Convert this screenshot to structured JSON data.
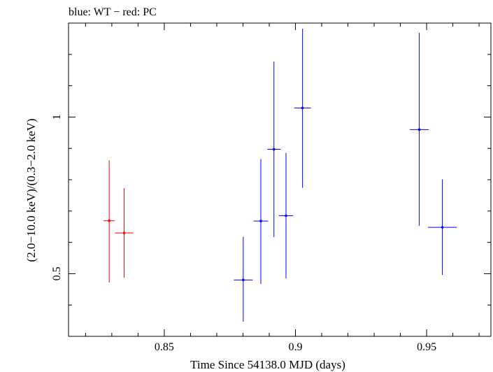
{
  "chart_data": {
    "type": "scatter",
    "title": "blue: WT − red: PC",
    "xlabel": "Time Since 54138.0 MJD (days)",
    "ylabel": "(2.0−10.0 keV)/(0.3−2.0 keV)",
    "xlim": [
      0.8135,
      0.9745
    ],
    "ylim": [
      0.3,
      1.3
    ],
    "x_ticks": [
      {
        "value": 0.85,
        "label": "0.85"
      },
      {
        "value": 0.9,
        "label": "0.9"
      },
      {
        "value": 0.95,
        "label": "0.95"
      }
    ],
    "y_ticks": [
      {
        "value": 0.5,
        "label": "0.5"
      },
      {
        "value": 1.0,
        "label": "1"
      }
    ],
    "series": [
      {
        "mode": "WT",
        "color": "#0000ff",
        "points": [
          {
            "x": 0.8801,
            "y": 0.48,
            "xerr": 0.0036,
            "ylo": 0.347,
            "yhi": 0.618
          },
          {
            "x": 0.8868,
            "y": 0.668,
            "xerr": 0.0028,
            "ylo": 0.467,
            "yhi": 0.866
          },
          {
            "x": 0.8918,
            "y": 0.897,
            "xerr": 0.0025,
            "ylo": 0.617,
            "yhi": 1.177
          },
          {
            "x": 0.8964,
            "y": 0.685,
            "xerr": 0.0027,
            "ylo": 0.485,
            "yhi": 0.886
          },
          {
            "x": 0.9027,
            "y": 1.029,
            "xerr": 0.0032,
            "ylo": 0.774,
            "yhi": 1.282
          },
          {
            "x": 0.9472,
            "y": 0.96,
            "xerr": 0.0036,
            "ylo": 0.653,
            "yhi": 1.269
          },
          {
            "x": 0.956,
            "y": 0.648,
            "xerr": 0.0055,
            "ylo": 0.496,
            "yhi": 0.801
          }
        ]
      },
      {
        "mode": "PC",
        "color": "#ff0000",
        "points": [
          {
            "x": 0.829,
            "y": 0.669,
            "xerr": 0.0022,
            "ylo": 0.472,
            "yhi": 0.862
          },
          {
            "x": 0.8347,
            "y": 0.63,
            "xerr": 0.0035,
            "ylo": 0.487,
            "yhi": 0.773
          }
        ]
      }
    ]
  }
}
